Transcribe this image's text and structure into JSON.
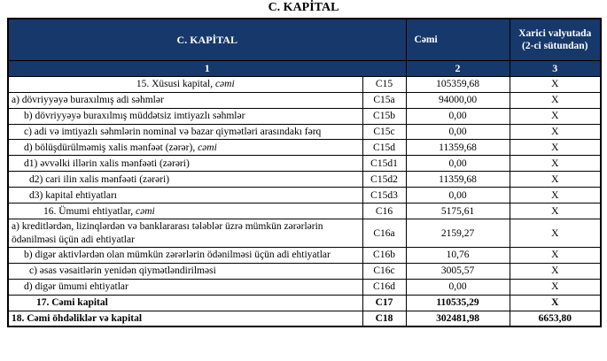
{
  "page_title": "C. KAPİTAL",
  "colors": {
    "header_bg": "#17386B",
    "header_text": "#FFFFFF",
    "border": "#000000",
    "body_text": "#000000"
  },
  "table": {
    "header": {
      "col_main": "C. KAPİTAL",
      "col_total": "Cəmi",
      "col_fx": "Xarici valyutada (2-ci sütundan)"
    },
    "numbering": {
      "c1": "1",
      "c2": "2",
      "c3": "3"
    },
    "rows": [
      {
        "main": "15. Xüsusi kapital, ",
        "italic": "cəmi",
        "code": "C15",
        "total": "105359,68",
        "fx": "X"
      },
      {
        "main": "a) dövriyyəyə buraxılmış adi səhmlər",
        "code": "C15a",
        "total": "94000,00",
        "fx": "X"
      },
      {
        "main": "b) dövriyyəyə buraxılmış müddətsiz imtiyazlı səhmlər",
        "code": "C15b",
        "total": "0,00",
        "fx": "X"
      },
      {
        "main": "c) adi və imtiyazlı səhmlərin nominal və bazar qiymətləri arasındakı fərq",
        "code": "C15c",
        "total": "0,00",
        "fx": "X"
      },
      {
        "main": "d) bölüşdürülməmiş xalis mənfəət (zərər), ",
        "italic": "cəmi",
        "code": "C15d",
        "total": "11359,68",
        "fx": "X"
      },
      {
        "main": "d1) əvvəlki illərin xalis mənfəəti (zərəri)",
        "code": "C15d1",
        "total": "0,00",
        "fx": "X"
      },
      {
        "main": "d2) cari ilin xalis mənfəəti (zərəri)",
        "code": "C15d2",
        "total": "11359,68",
        "fx": "X"
      },
      {
        "main": "d3) kapital ehtiyatları",
        "code": "C15d3",
        "total": "0,00",
        "fx": "X"
      },
      {
        "main": "16. Ümumi ehtiyatlar, ",
        "italic": "cəmi",
        "code": "C16",
        "total": "5175,61",
        "fx": "X"
      },
      {
        "main": "a) kreditlərdən, lizinqlərdən və banklararası tələblər üzrə mümkün zərərlərin ödənilməsi üçün adi ehtiyatlar",
        "code": "C16a",
        "total": "2159,27",
        "fx": "X"
      },
      {
        "main": "b) digər aktivlərdən olan mümkün zərərlərin ödənilməsi üçün adi ehtiyatlar",
        "code": "C16b",
        "total": "10,76",
        "fx": "X"
      },
      {
        "main": "c) əsas vəsaitlərin yenidən qiymətləndirilməsi",
        "code": "C16c",
        "total": "3005,57",
        "fx": "X"
      },
      {
        "main": "d) digər ümumi ehtiyatlar",
        "code": "C16d",
        "total": "0,00",
        "fx": "X"
      },
      {
        "main": "17. Cəmi kapital",
        "code": "C17",
        "total": "110535,29",
        "fx": "X"
      },
      {
        "main": "18. Cəmi öhdəliklər və kapital",
        "code": "C18",
        "total": "302481,98",
        "fx": "6653,80"
      }
    ]
  }
}
